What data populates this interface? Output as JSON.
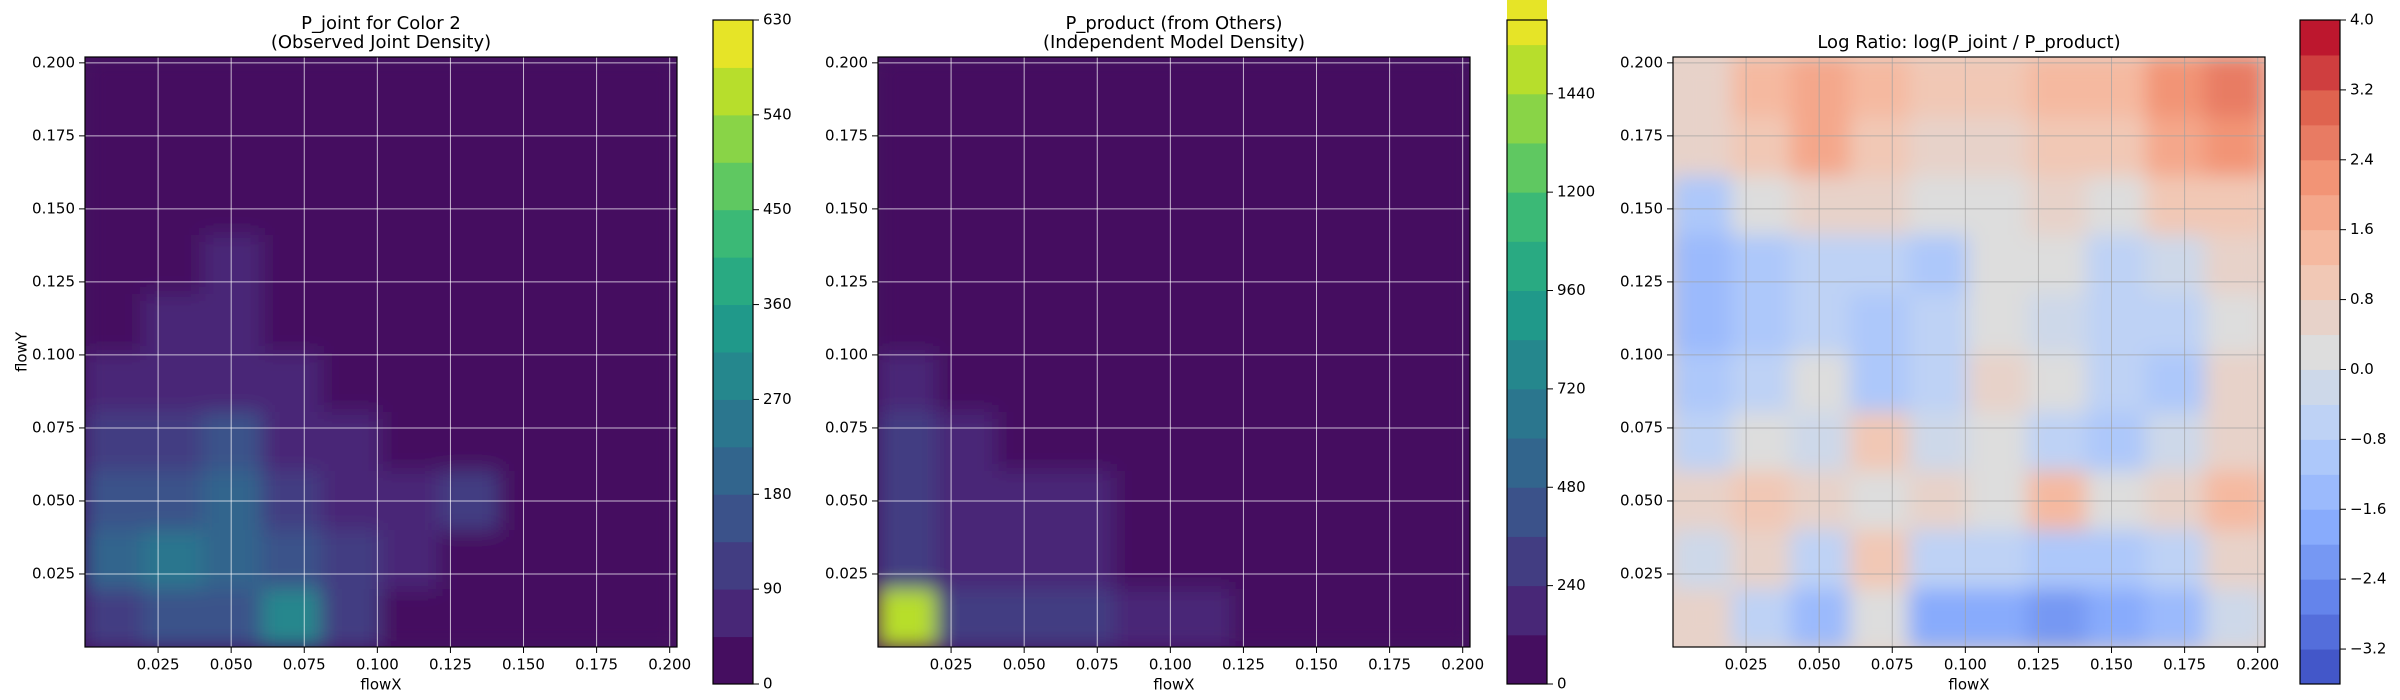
{
  "chart_data": [
    {
      "type": "contour",
      "title": "P_joint for Color 2",
      "subtitle": "(Observed Joint Density)",
      "xlabel": "flowX",
      "ylabel": "flowY",
      "colormap": "viridis",
      "grid": true,
      "xlim": [
        0,
        0.2025
      ],
      "ylim": [
        0,
        0.202
      ],
      "xticks": [
        0.025,
        {
          "value": 0.05,
          "label": "0.050"
        },
        0.075,
        {
          "value": 0.1,
          "label": "0.100"
        },
        0.125,
        {
          "value": 0.15,
          "label": "0.150"
        },
        0.175,
        {
          "value": 0.2,
          "label": "0.200"
        }
      ],
      "yticks": [
        0.025,
        {
          "value": 0.05,
          "label": "0.050"
        },
        0.075,
        {
          "value": 0.1,
          "label": "0.100"
        },
        0.125,
        {
          "value": 0.15,
          "label": "0.150"
        },
        0.175,
        {
          "value": 0.2,
          "label": "0.200"
        }
      ],
      "clim": [
        0,
        630
      ],
      "cticks": [
        0,
        90,
        180,
        270,
        360,
        450,
        540,
        630
      ],
      "z": [
        [
          130,
          150,
          140,
          300,
          90,
          40,
          20,
          20,
          20,
          20
        ],
        [
          200,
          250,
          200,
          140,
          110,
          60,
          25,
          20,
          20,
          20
        ],
        [
          160,
          150,
          180,
          90,
          70,
          50,
          110,
          20,
          20,
          20
        ],
        [
          120,
          90,
          140,
          80,
          60,
          30,
          20,
          20,
          20,
          20
        ],
        [
          70,
          80,
          60,
          50,
          30,
          20,
          20,
          20,
          20,
          20
        ],
        [
          40,
          60,
          50,
          30,
          20,
          20,
          20,
          20,
          20,
          20
        ],
        [
          30,
          40,
          45,
          30,
          20,
          20,
          20,
          20,
          20,
          20
        ],
        [
          20,
          20,
          20,
          20,
          20,
          20,
          20,
          20,
          20,
          20
        ],
        [
          20,
          20,
          20,
          20,
          20,
          20,
          20,
          20,
          20,
          20
        ],
        [
          20,
          20,
          20,
          20,
          20,
          20,
          20,
          20,
          20,
          20
        ]
      ]
    },
    {
      "type": "contour",
      "title": "P_product (from Others)",
      "subtitle": "(Independent Model Density)",
      "xlabel": "flowX",
      "colormap": "viridis",
      "grid": true,
      "xlim": [
        0,
        0.2025
      ],
      "ylim": [
        0,
        0.202
      ],
      "xticks": [
        0.025,
        {
          "value": 0.05,
          "label": "0.050"
        },
        0.075,
        {
          "value": 0.1,
          "label": "0.100"
        },
        0.125,
        {
          "value": 0.15,
          "label": "0.150"
        },
        0.175,
        {
          "value": 0.2,
          "label": "0.200"
        }
      ],
      "yticks": [
        0.025,
        {
          "value": 0.05,
          "label": "0.050"
        },
        0.075,
        {
          "value": 0.1,
          "label": "0.100"
        },
        0.125,
        {
          "value": 0.15,
          "label": "0.150"
        },
        0.175,
        {
          "value": 0.2,
          "label": "0.200"
        }
      ],
      "clim": [
        0,
        1620
      ],
      "cticks": [
        0,
        240,
        480,
        720,
        960,
        1200,
        1440
      ],
      "z": [
        [
          1500,
          300,
          250,
          250,
          200,
          150,
          100,
          20,
          5,
          5
        ],
        [
          300,
          150,
          130,
          120,
          100,
          60,
          20,
          5,
          5,
          5
        ],
        [
          320,
          160,
          140,
          120,
          90,
          50,
          15,
          5,
          5,
          5
        ],
        [
          260,
          130,
          110,
          100,
          80,
          40,
          10,
          5,
          5,
          5
        ],
        [
          200,
          110,
          90,
          80,
          60,
          30,
          5,
          5,
          5,
          5
        ],
        [
          60,
          10,
          5,
          5,
          5,
          5,
          5,
          5,
          5,
          5
        ],
        [
          40,
          5,
          5,
          5,
          5,
          5,
          5,
          5,
          5,
          5
        ],
        [
          5,
          5,
          5,
          5,
          5,
          5,
          5,
          5,
          5,
          5
        ],
        [
          5,
          5,
          5,
          5,
          5,
          5,
          5,
          5,
          5,
          5
        ],
        [
          5,
          5,
          5,
          5,
          5,
          5,
          5,
          5,
          5,
          5
        ]
      ]
    },
    {
      "type": "contour",
      "title": "Log Ratio: log(P_joint / P_product)",
      "xlabel": "flowX",
      "colormap": "coolwarm",
      "grid": true,
      "xlim": [
        0,
        0.2025
      ],
      "ylim": [
        0,
        0.202
      ],
      "xticks": [
        0.025,
        {
          "value": 0.05,
          "label": "0.050"
        },
        0.075,
        {
          "value": 0.1,
          "label": "0.100"
        },
        0.125,
        {
          "value": 0.15,
          "label": "0.150"
        },
        0.175,
        {
          "value": 0.2,
          "label": "0.200"
        }
      ],
      "yticks": [
        0.025,
        {
          "value": 0.05,
          "label": "0.050"
        },
        0.075,
        {
          "value": 0.1,
          "label": "0.100"
        },
        0.125,
        {
          "value": 0.15,
          "label": "0.150"
        },
        0.175,
        {
          "value": 0.2,
          "label": "0.200"
        }
      ],
      "clim": [
        -3.6,
        4.0
      ],
      "cticks": [
        {
          "value": -3.2,
          "label": "−3.2"
        },
        {
          "value": -2.4,
          "label": "−2.4"
        },
        {
          "value": -1.6,
          "label": "−1.6"
        },
        {
          "value": -0.8,
          "label": "−0.8"
        },
        {
          "value": 0,
          "label": "0.0"
        },
        {
          "value": 0.8,
          "label": "0.8"
        },
        {
          "value": 1.6,
          "label": "1.6"
        },
        {
          "value": 2.4,
          "label": "2.4"
        },
        {
          "value": 3.2,
          "label": "3.2"
        },
        {
          "value": 4,
          "label": "4.0"
        }
      ],
      "z": [
        [
          0.6,
          -0.4,
          -1.4,
          0.4,
          -1.6,
          -1.8,
          -2.0,
          -1.8,
          -1.2,
          -0.2
        ],
        [
          -0.2,
          0.8,
          -0.4,
          1.2,
          -0.6,
          -0.6,
          -0.8,
          -1.0,
          -0.4,
          0.8
        ],
        [
          0.6,
          1.0,
          0.6,
          0.2,
          0.6,
          0.4,
          1.4,
          0.4,
          0.8,
          1.6
        ],
        [
          -0.4,
          0.2,
          0.0,
          1.0,
          -0.2,
          0.4,
          -0.4,
          -0.8,
          -0.2,
          0.6
        ],
        [
          -1.0,
          -0.6,
          0.4,
          -0.8,
          -0.4,
          0.6,
          0.2,
          -0.6,
          -0.8,
          0.8
        ],
        [
          -1.2,
          -0.8,
          -0.6,
          -1.0,
          -0.6,
          0.4,
          0.0,
          -0.4,
          -0.6,
          0.4
        ],
        [
          -1.2,
          -0.8,
          -0.6,
          -0.4,
          -0.8,
          0.2,
          0.4,
          -0.4,
          -0.2,
          0.6
        ],
        [
          -0.8,
          0.4,
          0.8,
          0.6,
          0.4,
          0.3,
          0.5,
          0.4,
          1.0,
          1.2
        ],
        [
          0.5,
          1.2,
          1.8,
          1.2,
          0.6,
          0.8,
          1.0,
          1.2,
          2.0,
          2.4
        ],
        [
          0.8,
          1.6,
          2.0,
          1.5,
          1.0,
          1.2,
          1.4,
          1.5,
          2.4,
          2.6
        ]
      ]
    }
  ]
}
